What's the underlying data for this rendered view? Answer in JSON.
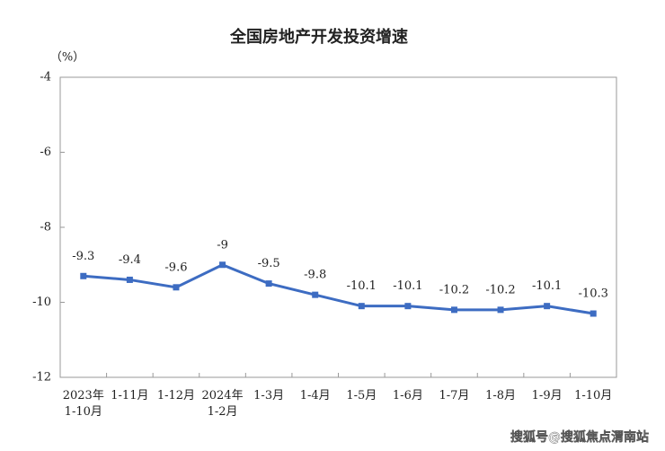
{
  "chart_data": {
    "type": "line",
    "title": "全国房地产开发投资增速",
    "unit_label": "（%）",
    "categories": [
      "2023年\n1-10月",
      "1-11月",
      "1-12月",
      "2024年\n1-2月",
      "1-3月",
      "1-4月",
      "1-5月",
      "1-6月",
      "1-7月",
      "1-8月",
      "1-9月",
      "1-10月"
    ],
    "values": [
      -9.3,
      -9.4,
      -9.6,
      -9.0,
      -9.5,
      -9.8,
      -10.1,
      -10.1,
      -10.2,
      -10.2,
      -10.1,
      -10.3
    ],
    "color": "#3d6cc2",
    "ylim": [
      -12,
      -4
    ],
    "yticks": [
      -4,
      -6,
      -8,
      -10,
      -12
    ],
    "watermark": "搜狐号@搜狐焦点渭南站"
  }
}
